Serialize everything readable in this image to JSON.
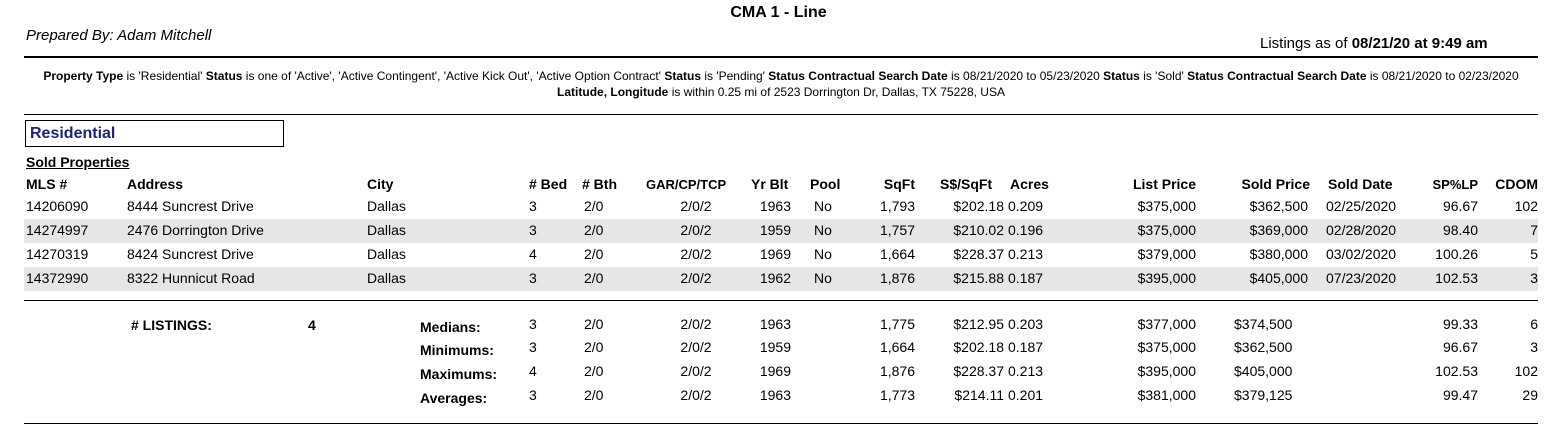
{
  "report": {
    "title": "CMA 1 - Line",
    "prepared_by": "Prepared By: Adam Mitchell",
    "listings_prefix": "Listings as of ",
    "listings_date": "08/21/20 at  9:49 am"
  },
  "criteria": {
    "l1": "Property Type",
    "v1": " is 'Residential'  ",
    "l2": "Status",
    "v2": " is one of 'Active', 'Active Contingent', 'Active Kick Out', 'Active Option Contract'  ",
    "l3": "Status",
    "v3": " is 'Pending'  ",
    "l4": "Status Contractual Search Date",
    "v4": " is 08/21/2020 to 05/23/2020  ",
    "l5": "Status",
    "v5": " is 'Sold'  ",
    "l6": "Status Contractual Search Date",
    "v6": " is 08/21/2020 to 02/23/2020  ",
    "l7": "Latitude, Longitude",
    "v7": " is within 0.25 mi of 2523 Dorrington Dr, Dallas, TX 75228, USA"
  },
  "section": {
    "type": "Residential",
    "subtitle": "Sold Properties"
  },
  "columns": {
    "mls": "MLS #",
    "address": "Address",
    "city": "City",
    "bed": "# Bed",
    "bth": "# Bth",
    "gar": "GAR/CP/TCP",
    "yrblt": "Yr Blt",
    "pool": "Pool",
    "sqft": "SqFt",
    "ssqft": "S$/SqFt",
    "acres": "Acres",
    "list_price": "List Price",
    "sold_price": "Sold Price",
    "sold_date": "Sold Date",
    "splp": "SP%LP",
    "cdom": "CDOM"
  },
  "rows": [
    {
      "mls": "14206090",
      "address": "8444 Suncrest Drive",
      "city": "Dallas",
      "bed": "3",
      "bth": "2/0",
      "gar": "2/0/2",
      "yrblt": "1963",
      "pool": "No",
      "sqft": "1,793",
      "ssqft": "$202.18",
      "acres": "0.209",
      "list_price": "$375,000",
      "sold_price": "$362,500",
      "sold_date": "02/25/2020",
      "splp": "96.67",
      "cdom": "102"
    },
    {
      "mls": "14274997",
      "address": "2476 Dorrington Drive",
      "city": "Dallas",
      "bed": "3",
      "bth": "2/0",
      "gar": "2/0/2",
      "yrblt": "1959",
      "pool": "No",
      "sqft": "1,757",
      "ssqft": "$210.02",
      "acres": "0.196",
      "list_price": "$375,000",
      "sold_price": "$369,000",
      "sold_date": "02/28/2020",
      "splp": "98.40",
      "cdom": "7"
    },
    {
      "mls": "14270319",
      "address": "8424 Suncrest Drive",
      "city": "Dallas",
      "bed": "4",
      "bth": "2/0",
      "gar": "2/0/2",
      "yrblt": "1969",
      "pool": "No",
      "sqft": "1,664",
      "ssqft": "$228.37",
      "acres": "0.213",
      "list_price": "$379,000",
      "sold_price": "$380,000",
      "sold_date": "03/02/2020",
      "splp": "100.26",
      "cdom": "5"
    },
    {
      "mls": "14372990",
      "address": "8322 Hunnicut Road",
      "city": "Dallas",
      "bed": "3",
      "bth": "2/0",
      "gar": "2/0/2",
      "yrblt": "1962",
      "pool": "No",
      "sqft": "1,876",
      "ssqft": "$215.88",
      "acres": "0.187",
      "list_price": "$395,000",
      "sold_price": "$405,000",
      "sold_date": "07/23/2020",
      "splp": "102.53",
      "cdom": "3"
    }
  ],
  "summary": {
    "listings_label": "# LISTINGS:",
    "listings_count": "4",
    "stats": [
      {
        "label": "Medians:",
        "bed": "3",
        "bth": "2/0",
        "gar": "2/0/2",
        "yrblt": "1963",
        "sqft": "1,775",
        "ssqft": "$212.95",
        "acres": "0.203",
        "list_price": "$377,000",
        "sold_price": "$374,500",
        "splp": "99.33",
        "cdom": "6"
      },
      {
        "label": "Minimums:",
        "bed": "3",
        "bth": "2/0",
        "gar": "2/0/2",
        "yrblt": "1959",
        "sqft": "1,664",
        "ssqft": "$202.18",
        "acres": "0.187",
        "list_price": "$375,000",
        "sold_price": "$362,500",
        "splp": "96.67",
        "cdom": "3"
      },
      {
        "label": "Maximums:",
        "bed": "4",
        "bth": "2/0",
        "gar": "2/0/2",
        "yrblt": "1969",
        "sqft": "1,876",
        "ssqft": "$228.37",
        "acres": "0.213",
        "list_price": "$395,000",
        "sold_price": "$405,000",
        "splp": "102.53",
        "cdom": "102"
      },
      {
        "label": "Averages:",
        "bed": "3",
        "bth": "2/0",
        "gar": "2/0/2",
        "yrblt": "1963",
        "sqft": "1,773",
        "ssqft": "$214.11",
        "acres": "0.201",
        "list_price": "$381,000",
        "sold_price": "$379,125",
        "splp": "99.47",
        "cdom": "29"
      }
    ]
  }
}
